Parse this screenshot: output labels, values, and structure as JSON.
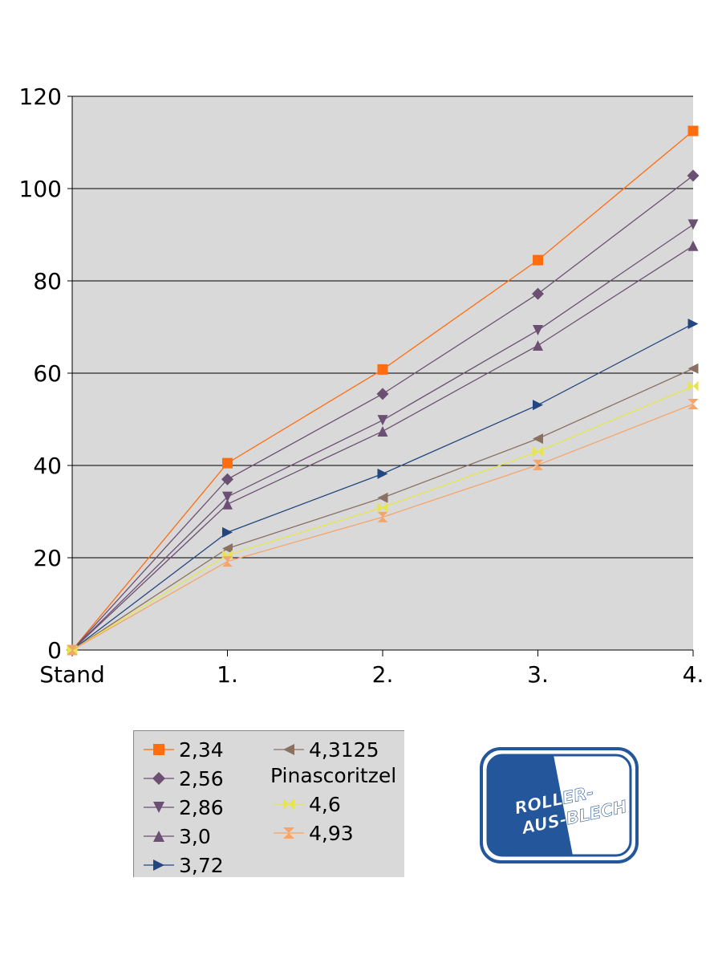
{
  "chart_data": {
    "type": "line",
    "categories": [
      "Stand",
      "1.",
      "2.",
      "3.",
      "4."
    ],
    "ylim": [
      0,
      120
    ],
    "yticks": [
      0,
      20,
      40,
      60,
      80,
      100,
      120
    ],
    "grid": true,
    "legend_position": "bottom-left",
    "series": [
      {
        "name": "2,34",
        "values": [
          0,
          40.5,
          60.8,
          84.5,
          112.5
        ],
        "color": "#ff6d0f",
        "marker": "square"
      },
      {
        "name": "2,56",
        "values": [
          0,
          37.0,
          55.5,
          77.2,
          102.8
        ],
        "color": "#6c5074",
        "marker": "diamond"
      },
      {
        "name": "2,86",
        "values": [
          0,
          33.2,
          49.8,
          69.3,
          92.2
        ],
        "color": "#6c5074",
        "marker": "triangle-down"
      },
      {
        "name": "3,0",
        "values": [
          0,
          31.6,
          47.4,
          66.0,
          87.6
        ],
        "color": "#6c5074",
        "marker": "triangle-up"
      },
      {
        "name": "3,72",
        "values": [
          0,
          25.5,
          38.2,
          53.1,
          70.7
        ],
        "color": "#23477f",
        "marker": "triangle-right"
      },
      {
        "name": "4,3125",
        "values": [
          0,
          22.0,
          33.0,
          45.8,
          61.0
        ],
        "color": "#8a7060",
        "marker": "triangle-left"
      },
      {
        "name": "4,6",
        "values": [
          0,
          20.6,
          30.9,
          43.0,
          57.2
        ],
        "color": "#e6e64c",
        "marker": "bowtie"
      },
      {
        "name": "4,93",
        "values": [
          0,
          19.2,
          28.8,
          40.1,
          53.3
        ],
        "color": "#f5a56a",
        "marker": "hourglass"
      }
    ]
  },
  "legend": {
    "group_heading": "Pinascoritzel"
  },
  "logo": {
    "line1": "ROLLER-",
    "line2": "AUS-BLECH"
  },
  "colors": {
    "plot_background": "#d9d9d9",
    "logo_blue": "#23569a"
  }
}
